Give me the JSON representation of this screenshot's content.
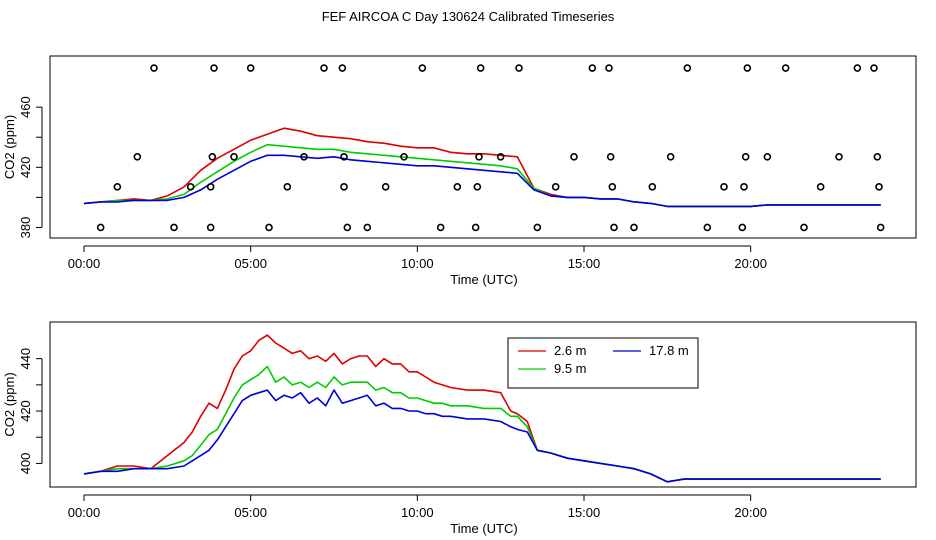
{
  "page": {
    "title": "FEF AIRCOA C  Day 130624  Calibrated Timeseries"
  },
  "colors": {
    "series_2_6": "#dd0000",
    "series_9_5": "#00cc00",
    "series_17_8": "#0000dd",
    "points": "#000000"
  },
  "chart_data": [
    {
      "type": "line",
      "title": "",
      "xlabel": "Time (UTC)",
      "ylabel": "CO2 (ppm)",
      "xlim": [
        0,
        24
      ],
      "ylim": [
        373,
        494
      ],
      "xticks": [
        0,
        5,
        10,
        15,
        20
      ],
      "xtick_labels": [
        "00:00",
        "05:00",
        "10:00",
        "15:00",
        "20:00"
      ],
      "yticks": [
        380,
        420,
        460
      ],
      "ytick_labels": [
        "380",
        "420",
        "460"
      ],
      "grid": false,
      "series": [
        {
          "name": "2.6 m",
          "color": "#dd0000",
          "x": [
            0,
            0.5,
            1,
            1.5,
            2,
            2.5,
            3,
            3.5,
            4,
            4.5,
            5,
            5.5,
            6,
            6.5,
            7,
            7.5,
            8,
            8.5,
            9,
            9.5,
            10,
            10.5,
            11,
            11.5,
            12,
            12.5,
            13,
            13.5,
            14,
            14.5,
            15,
            15.5,
            16,
            16.5,
            17,
            17.5,
            18,
            18.5,
            19,
            19.5,
            20,
            20.5,
            21,
            21.5,
            22,
            22.5,
            23,
            23.5,
            23.9
          ],
          "y": [
            396,
            397,
            398,
            399,
            398,
            401,
            407,
            418,
            426,
            432,
            438,
            442,
            446,
            444,
            441,
            440,
            439,
            437,
            436,
            434,
            433,
            433,
            430,
            429,
            429,
            428,
            427,
            406,
            402,
            400,
            400,
            399,
            399,
            397,
            396,
            394,
            394,
            394,
            394,
            394,
            394,
            395,
            395,
            395,
            395,
            395,
            395,
            395,
            395
          ]
        },
        {
          "name": "9.5 m",
          "color": "#00cc00",
          "x": [
            0,
            0.5,
            1,
            1.5,
            2,
            2.5,
            3,
            3.5,
            4,
            4.5,
            5,
            5.5,
            6,
            6.5,
            7,
            7.5,
            8,
            8.5,
            9,
            9.5,
            10,
            10.5,
            11,
            11.5,
            12,
            12.5,
            13,
            13.5,
            14,
            14.5,
            15,
            15.5,
            16,
            16.5,
            17,
            17.5,
            18,
            18.5,
            19,
            19.5,
            20,
            20.5,
            21,
            21.5,
            22,
            22.5,
            23,
            23.5,
            23.9
          ],
          "y": [
            396,
            397,
            398,
            398,
            398,
            399,
            402,
            410,
            417,
            424,
            430,
            435,
            434,
            433,
            432,
            432,
            430,
            429,
            428,
            427,
            426,
            425,
            424,
            423,
            422,
            421,
            419,
            406,
            401,
            400,
            400,
            399,
            399,
            397,
            396,
            394,
            394,
            394,
            394,
            394,
            394,
            395,
            395,
            395,
            395,
            395,
            395,
            395,
            395
          ]
        },
        {
          "name": "17.8 m",
          "color": "#0000dd",
          "x": [
            0,
            0.5,
            1,
            1.5,
            2,
            2.5,
            3,
            3.5,
            4,
            4.5,
            5,
            5.5,
            6,
            6.5,
            7,
            7.5,
            8,
            8.5,
            9,
            9.5,
            10,
            10.5,
            11,
            11.5,
            12,
            12.5,
            13,
            13.5,
            14,
            14.5,
            15,
            15.5,
            16,
            16.5,
            17,
            17.5,
            18,
            18.5,
            19,
            19.5,
            20,
            20.5,
            21,
            21.5,
            22,
            22.5,
            23,
            23.5,
            23.9
          ],
          "y": [
            396,
            397,
            397,
            398,
            398,
            398,
            400,
            405,
            412,
            418,
            424,
            428,
            428,
            427,
            426,
            427,
            425,
            424,
            423,
            422,
            421,
            421,
            420,
            419,
            418,
            417,
            416,
            405,
            401,
            400,
            400,
            399,
            399,
            397,
            396,
            394,
            394,
            394,
            394,
            394,
            394,
            395,
            395,
            395,
            395,
            395,
            395,
            395,
            395
          ]
        },
        {
          "name": "",
          "type": "scatter",
          "color": "#000000",
          "points": [
            [
              0.5,
              380
            ],
            [
              1.0,
              407
            ],
            [
              1.6,
              427
            ],
            [
              2.1,
              486
            ],
            [
              2.7,
              380
            ],
            [
              3.2,
              407
            ],
            [
              3.8,
              380
            ],
            [
              3.8,
              407
            ],
            [
              3.85,
              427
            ],
            [
              3.9,
              486
            ],
            [
              4.5,
              427
            ],
            [
              5.0,
              486
            ],
            [
              5.55,
              380
            ],
            [
              6.1,
              407
            ],
            [
              6.6,
              427
            ],
            [
              7.2,
              486
            ],
            [
              7.75,
              486
            ],
            [
              7.8,
              427
            ],
            [
              7.8,
              407
            ],
            [
              7.9,
              380
            ],
            [
              8.5,
              380
            ],
            [
              9.05,
              407
            ],
            [
              9.6,
              427
            ],
            [
              10.15,
              486
            ],
            [
              10.7,
              380
            ],
            [
              11.2,
              407
            ],
            [
              11.75,
              380
            ],
            [
              11.8,
              407
            ],
            [
              11.85,
              427
            ],
            [
              11.9,
              486
            ],
            [
              12.5,
              427
            ],
            [
              13.05,
              486
            ],
            [
              13.6,
              380
            ],
            [
              14.15,
              407
            ],
            [
              14.7,
              427
            ],
            [
              15.25,
              486
            ],
            [
              15.75,
              486
            ],
            [
              15.8,
              427
            ],
            [
              15.85,
              407
            ],
            [
              15.9,
              380
            ],
            [
              16.5,
              380
            ],
            [
              17.05,
              407
            ],
            [
              17.6,
              427
            ],
            [
              18.1,
              486
            ],
            [
              18.7,
              380
            ],
            [
              19.2,
              407
            ],
            [
              19.75,
              380
            ],
            [
              19.8,
              407
            ],
            [
              19.85,
              427
            ],
            [
              19.9,
              486
            ],
            [
              20.5,
              427
            ],
            [
              21.05,
              486
            ],
            [
              21.6,
              380
            ],
            [
              22.1,
              407
            ],
            [
              22.65,
              427
            ],
            [
              23.2,
              486
            ],
            [
              23.7,
              486
            ],
            [
              23.8,
              427
            ],
            [
              23.85,
              407
            ],
            [
              23.9,
              380
            ]
          ]
        }
      ]
    },
    {
      "type": "line",
      "title": "",
      "xlabel": "Time (UTC)",
      "ylabel": "CO2 (ppm)",
      "xlim": [
        0,
        24
      ],
      "ylim": [
        391,
        454
      ],
      "xticks": [
        0,
        5,
        10,
        15,
        20
      ],
      "xtick_labels": [
        "00:00",
        "05:00",
        "10:00",
        "15:00",
        "20:00"
      ],
      "yticks": [
        400,
        420,
        440
      ],
      "ytick_labels": [
        "400",
        "420",
        "440"
      ],
      "grid": false,
      "legend": {
        "placement": "top-right",
        "entries": [
          "2.6 m",
          "17.8 m",
          "9.5 m"
        ]
      },
      "series": [
        {
          "name": "2.6 m",
          "color": "#dd0000",
          "x": [
            0,
            0.5,
            1,
            1.5,
            2,
            2.5,
            3,
            3.25,
            3.5,
            3.75,
            4,
            4.25,
            4.5,
            4.75,
            5,
            5.25,
            5.5,
            5.75,
            6,
            6.25,
            6.5,
            6.75,
            7,
            7.25,
            7.5,
            7.75,
            8,
            8.25,
            8.5,
            8.75,
            9,
            9.25,
            9.5,
            9.75,
            10,
            10.25,
            10.5,
            10.75,
            11,
            11.5,
            12,
            12.5,
            12.8,
            13,
            13.3,
            13.6,
            14,
            14.5,
            15,
            15.5,
            16,
            16.5,
            17,
            17.5,
            18,
            18.5,
            19,
            19.5,
            20,
            20.5,
            21,
            21.5,
            22,
            22.5,
            23,
            23.5,
            23.9
          ],
          "y": [
            396,
            397,
            399,
            399,
            398,
            403,
            408,
            412,
            418,
            423,
            421,
            428,
            436,
            441,
            443,
            447,
            449,
            446,
            444,
            442,
            443,
            440,
            441,
            439,
            442,
            438,
            440,
            441,
            441,
            437,
            440,
            438,
            438,
            435,
            435,
            433,
            431,
            430,
            429,
            428,
            428,
            427,
            420,
            419,
            416,
            405,
            404,
            402,
            401,
            400,
            399,
            398,
            396,
            393,
            394,
            394,
            394,
            394,
            394,
            394,
            394,
            394,
            394,
            394,
            394,
            394,
            394
          ]
        },
        {
          "name": "9.5 m",
          "color": "#00cc00",
          "x": [
            0,
            0.5,
            1,
            1.5,
            2,
            2.5,
            3,
            3.25,
            3.5,
            3.75,
            4,
            4.25,
            4.5,
            4.75,
            5,
            5.25,
            5.5,
            5.75,
            6,
            6.25,
            6.5,
            6.75,
            7,
            7.25,
            7.5,
            7.75,
            8,
            8.25,
            8.5,
            8.75,
            9,
            9.25,
            9.5,
            9.75,
            10,
            10.25,
            10.5,
            10.75,
            11,
            11.5,
            12,
            12.5,
            12.8,
            13,
            13.3,
            13.6,
            14,
            14.5,
            15,
            15.5,
            16,
            16.5,
            17,
            17.5,
            18,
            18.5,
            19,
            19.5,
            20,
            20.5,
            21,
            21.5,
            22,
            22.5,
            23,
            23.5,
            23.9
          ],
          "y": [
            396,
            397,
            398,
            398,
            398,
            399,
            401,
            403,
            407,
            411,
            413,
            419,
            425,
            430,
            432,
            434,
            437,
            431,
            433,
            430,
            431,
            429,
            431,
            429,
            433,
            430,
            431,
            431,
            431,
            428,
            429,
            427,
            427,
            425,
            425,
            424,
            423,
            423,
            422,
            422,
            421,
            421,
            418,
            418,
            414,
            405,
            404,
            402,
            401,
            400,
            399,
            398,
            396,
            393,
            394,
            394,
            394,
            394,
            394,
            394,
            394,
            394,
            394,
            394,
            394,
            394,
            394
          ]
        },
        {
          "name": "17.8 m",
          "color": "#0000dd",
          "x": [
            0,
            0.5,
            1,
            1.5,
            2,
            2.5,
            3,
            3.25,
            3.5,
            3.75,
            4,
            4.25,
            4.5,
            4.75,
            5,
            5.25,
            5.5,
            5.75,
            6,
            6.25,
            6.5,
            6.75,
            7,
            7.25,
            7.5,
            7.75,
            8,
            8.25,
            8.5,
            8.75,
            9,
            9.25,
            9.5,
            9.75,
            10,
            10.25,
            10.5,
            10.75,
            11,
            11.5,
            12,
            12.5,
            12.8,
            13,
            13.3,
            13.6,
            14,
            14.5,
            15,
            15.5,
            16,
            16.5,
            17,
            17.5,
            18,
            18.5,
            19,
            19.5,
            20,
            20.5,
            21,
            21.5,
            22,
            22.5,
            23,
            23.5,
            23.9
          ],
          "y": [
            396,
            397,
            397,
            398,
            398,
            398,
            399,
            401,
            403,
            405,
            409,
            414,
            419,
            424,
            426,
            427,
            428,
            424,
            426,
            425,
            427,
            423,
            425,
            422,
            428,
            423,
            424,
            425,
            426,
            422,
            423,
            421,
            421,
            420,
            420,
            419,
            419,
            418,
            418,
            417,
            417,
            416,
            414,
            413,
            412,
            405,
            404,
            402,
            401,
            400,
            399,
            398,
            396,
            393,
            394,
            394,
            394,
            394,
            394,
            394,
            394,
            394,
            394,
            394,
            394,
            394,
            394
          ]
        }
      ]
    }
  ]
}
